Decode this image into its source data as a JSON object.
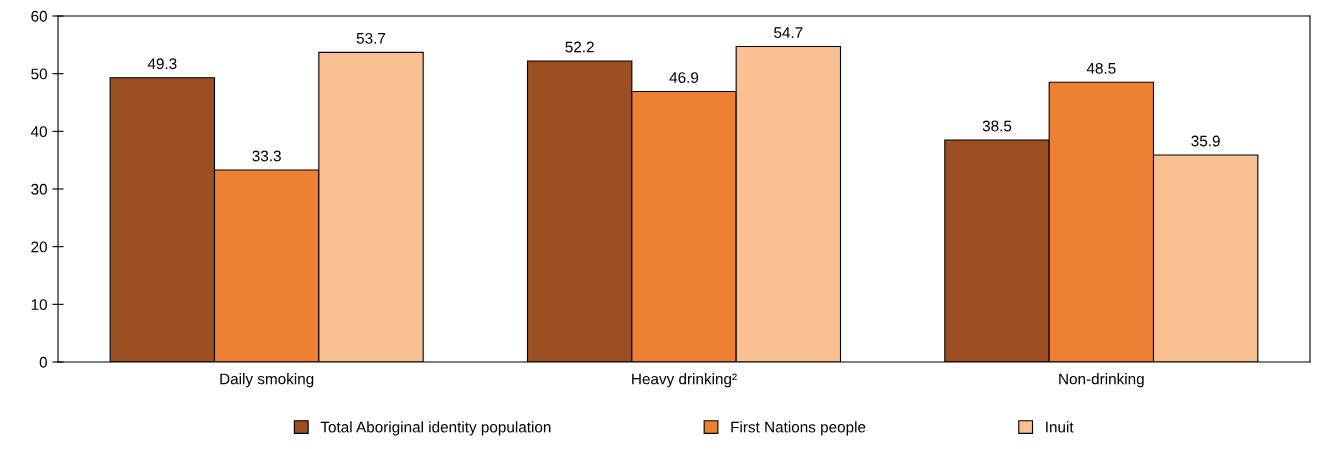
{
  "chart_data": {
    "type": "bar",
    "categories": [
      "Daily smoking",
      "Heavy drinking²",
      "Non-drinking"
    ],
    "series": [
      {
        "name": "Total Aboriginal identity population",
        "color": "#9b4f23",
        "values": [
          49.3,
          52.2,
          38.5
        ]
      },
      {
        "name": "First Nations people",
        "color": "#ed7f33",
        "values": [
          33.3,
          46.9,
          48.5
        ]
      },
      {
        "name": "Inuit",
        "color": "#f9c092",
        "values": [
          53.7,
          54.7,
          35.9
        ]
      }
    ],
    "ylim": [
      0,
      60
    ],
    "yticks": [
      0,
      10,
      20,
      30,
      40,
      50,
      60
    ],
    "data_labels": true,
    "grid": false,
    "legend": "bottom"
  }
}
